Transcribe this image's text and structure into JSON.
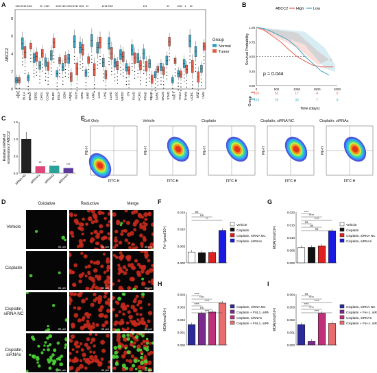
{
  "panels": {
    "A": "A",
    "B": "B",
    "C": "C",
    "D": "D",
    "E": "E",
    "F": "F",
    "G": "G",
    "H": "H",
    "I": "I"
  },
  "panelA": {
    "ylabel": "ABCC2",
    "legend_title": "Group",
    "legend": [
      {
        "name": "Normal",
        "color": "#3ba3c4"
      },
      {
        "name": "Tumor",
        "color": "#e45f4a"
      }
    ],
    "cancers": [
      "ACC",
      "BLCA",
      "BRCA",
      "CESC",
      "CHOL",
      "COAD",
      "DLBC",
      "ESCA",
      "GBM",
      "HNSC",
      "KICH",
      "KIRC",
      "KIRP",
      "LAML",
      "LGG",
      "LIHC",
      "LUAD",
      "LUSC",
      "MESO",
      "OV",
      "PAAD",
      "PCPG",
      "PRAD",
      "READ",
      "SARC",
      "SKCM",
      "STAD",
      "TGCT",
      "THCA",
      "THYM",
      "UCEC",
      "UCS",
      "UVM"
    ],
    "stars": [
      "****",
      "****",
      "****",
      "",
      "**",
      "****",
      "",
      "****",
      "****",
      "****",
      "****",
      "****",
      "**",
      "",
      "",
      "****",
      "****",
      "",
      "",
      "",
      "",
      "",
      "***",
      "",
      "",
      "",
      "**",
      "",
      "****",
      "*",
      "**",
      "",
      ""
    ],
    "yticks": [
      "0",
      "2",
      "4",
      "6",
      "8"
    ]
  },
  "panelB": {
    "legend_title": "ABCC2",
    "legend": [
      {
        "name": "High",
        "color": "#e45f4a"
      },
      {
        "name": "Low",
        "color": "#3ba3c4"
      }
    ],
    "ylabel": "Survival Probability",
    "yticks": [
      "0.00",
      "0.25",
      "0.50",
      "0.75",
      "1.00"
    ],
    "xticks": [
      "0",
      "500",
      "1000",
      "1500",
      "2000"
    ],
    "pvalue": "p = 0.044",
    "risk_group_label": "Group",
    "risk_rows": [
      {
        "color": "#e45f4a",
        "values": [
          "102",
          "52",
          "17",
          "4",
          "0"
        ]
      },
      {
        "color": "#3ba3c4",
        "values": [
          "102",
          "75",
          "33",
          "7",
          "0"
        ]
      }
    ],
    "xlabel": "Time (days)"
  },
  "panelC": {
    "ylabel": "Relative mRNA of\nexpression of ABCC2",
    "categories": [
      "siRNA NC",
      "siRNA#1",
      "siRNA#2",
      "siRNA#3"
    ],
    "values": [
      1.0,
      0.2,
      0.22,
      0.15
    ],
    "stars": [
      "",
      "**",
      "**",
      "***"
    ],
    "yticks": [
      "0.0",
      "0.5",
      "1.0",
      "1.5"
    ],
    "colors": [
      "#222222",
      "#e0457b",
      "#2aa198",
      "#5b3a9b"
    ]
  },
  "panelE": {
    "titles": [
      "Cell Only",
      "Vehicle",
      "Cisplatin",
      "Cisplatin, siRNA NC",
      "Cisplatin, siRNAs"
    ],
    "xlabel": "FITC-H",
    "ylabel": "PE-H"
  },
  "panelD": {
    "col_headers": [
      "Oxidative",
      "Reductive",
      "Merge"
    ],
    "rows": [
      "Vehicle",
      "Cisplatin",
      "Cisplatin,\nsiRNA NC",
      "Cisplatin,\nsiRNAs"
    ],
    "scale": "50 μm"
  },
  "panelF": {
    "ylabel": "Fe²⁺(μmol/10⁶)",
    "yticks": [
      "0.000",
      "0.005",
      "0.010",
      "0.015"
    ],
    "legend": [
      "Vehicle",
      "Cisplatin",
      "Cisplatin, siRNA NC",
      "Cisplatin, siRNAs"
    ],
    "sig": [
      "ns",
      "ns",
      "**"
    ]
  },
  "panelG": {
    "ylabel": "MDA(nmol/10⁶)",
    "yticks": [
      "0.000",
      "0.005",
      "0.010",
      "0.015",
      "0.020"
    ],
    "legend": [
      "Vehicle",
      "Cisplatin",
      "Cisplatin, siRNA NC",
      "Cisplatin, siRNAs"
    ],
    "sig": [
      "****",
      "****",
      "****",
      "ns",
      "ns",
      "ns"
    ]
  },
  "panelH": {
    "ylabel": "MDA(nmol/10⁶)",
    "yticks": [
      "0.000",
      "0.001",
      "0.002",
      "0.003",
      "0.004"
    ],
    "legend": [
      "Cisplatin, siRNA NC",
      "Cisplatin + FSL1, siRNA NC",
      "Cisplatin, siRNAs",
      "Cisplatin + FSL1, siRNAs"
    ],
    "sig": [
      "****",
      "****",
      "****",
      "****",
      "ns",
      "****"
    ]
  },
  "panelI": {
    "ylabel": "MDA(nmol/10⁶)",
    "yticks": [
      "0.000",
      "0.001",
      "0.002",
      "0.003",
      "0.004"
    ],
    "legend": [
      "Cisplatin, siRNA NC",
      "Cisplatin + Fer-1, siRNA NC",
      "Cisplatin, siRNAs",
      "Cisplatin + Fer-1, siRNAs"
    ],
    "sig": [
      "ns",
      "****",
      "****",
      "****",
      "****",
      "****"
    ]
  },
  "bar_series": {
    "F": [
      0.0032,
      0.003,
      0.0031,
      0.0096
    ],
    "G": [
      0.006,
      0.0061,
      0.0067,
      0.0126
    ],
    "H": [
      0.0016,
      0.0025,
      0.0026,
      0.0033
    ],
    "I": [
      0.0016,
      0.0003,
      0.0025,
      0.0017
    ]
  }
}
